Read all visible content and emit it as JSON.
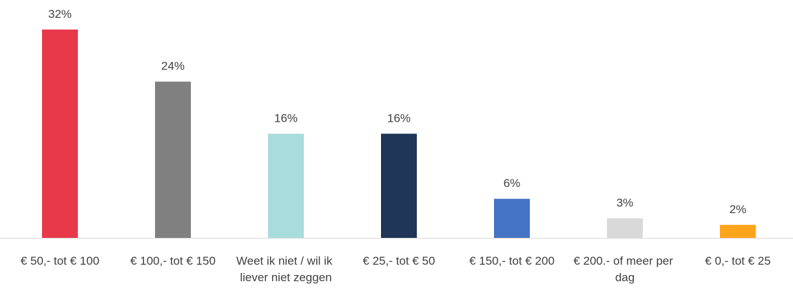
{
  "chart_data": {
    "type": "bar",
    "categories": [
      "€ 50,- tot € 100",
      "€ 100,- tot € 150",
      "Weet ik niet / wil ik liever niet zeggen",
      "€ 25,- tot € 50",
      "€ 150,- tot € 200",
      "€ 200.- of meer per dag",
      "€ 0,- tot € 25"
    ],
    "values": [
      32,
      24,
      16,
      16,
      6,
      3,
      2
    ],
    "value_labels": [
      "32%",
      "24%",
      "16%",
      "16%",
      "6%",
      "3%",
      "2%"
    ],
    "colors": [
      "#e8394a",
      "#808080",
      "#a9dcdc",
      "#1f3658",
      "#4472c4",
      "#d9d9d9",
      "#ffa41b"
    ]
  }
}
